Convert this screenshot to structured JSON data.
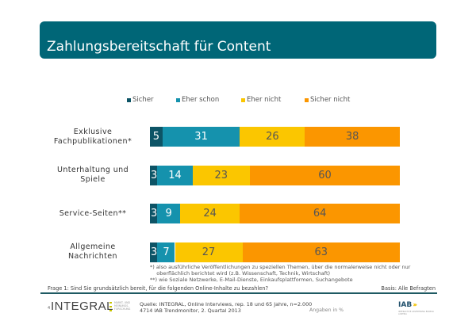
{
  "header": {
    "title": "Zahlungsbereitschaft für Content"
  },
  "colors": {
    "header_bg": "#006677",
    "series": [
      "#0d5466",
      "#1592ad",
      "#fbc600",
      "#fb9600"
    ],
    "label_text_light": "#ffffff",
    "label_text_dark": "#555555"
  },
  "chart_data": {
    "type": "bar",
    "orientation": "horizontal",
    "stacked": true,
    "title": "Zahlungsbereitschaft für Content",
    "xlabel": "",
    "ylabel": "",
    "xlim": [
      0,
      100
    ],
    "legend_position": "top",
    "grid": false,
    "categories": [
      "Exklusive Fachpublikationen*",
      "Unterhaltung und Spiele",
      "Service-Seiten**",
      "Allgemeine Nachrichten"
    ],
    "category_lines": [
      [
        "Exklusive",
        "Fachpublikationen*"
      ],
      [
        "Unterhaltung und",
        "Spiele"
      ],
      [
        "Service-Seiten**"
      ],
      [
        "Allgemeine",
        "Nachrichten"
      ]
    ],
    "series": [
      {
        "name": "Sicher",
        "values": [
          5,
          3,
          3,
          3
        ]
      },
      {
        "name": "Eher schon",
        "values": [
          31,
          14,
          9,
          7
        ]
      },
      {
        "name": "Eher nicht",
        "values": [
          26,
          23,
          24,
          27
        ]
      },
      {
        "name": "Sicher nicht",
        "values": [
          38,
          60,
          64,
          63
        ]
      }
    ],
    "unit": "Angaben in %"
  },
  "footnotes": {
    "text": "*) also ausführliche Veröffentlichungen zu speziellen Themen, über die normalerweise nicht oder nur\n    oberflächlich berichtet wird (z.B. Wissenschaft, Technik, Wirtschaft)\n**) wie Soziale Netzwerke, E-Mail-Dienste, Einkaufsplattformen, Suchangebote"
  },
  "footer": {
    "question": "Frage 1: Sind Sie grundsätzlich bereit, für die folgenden Online-Inhalte zu bezahlen?",
    "basis": "Basis: Alle Befragten",
    "page_number": "4",
    "logo_integral": "INTEGRAL",
    "logo_integral_sub": "MARKT- UND\nMEINUNGS-\nFORSCHUNG",
    "source": "Quelle: INTEGRAL, Online Interviews, rep. 18 und 65 Jahre, n=2.000\n4714 IAB Trendmonitor, 2. Quartal 2013",
    "unit": "Angaben in %",
    "logo_iab": "IAB",
    "logo_iab_arrows": "›››",
    "logo_iab_sub": "INTERACTIVE ADVERTISING BUREAU\nAUSTRIA"
  }
}
